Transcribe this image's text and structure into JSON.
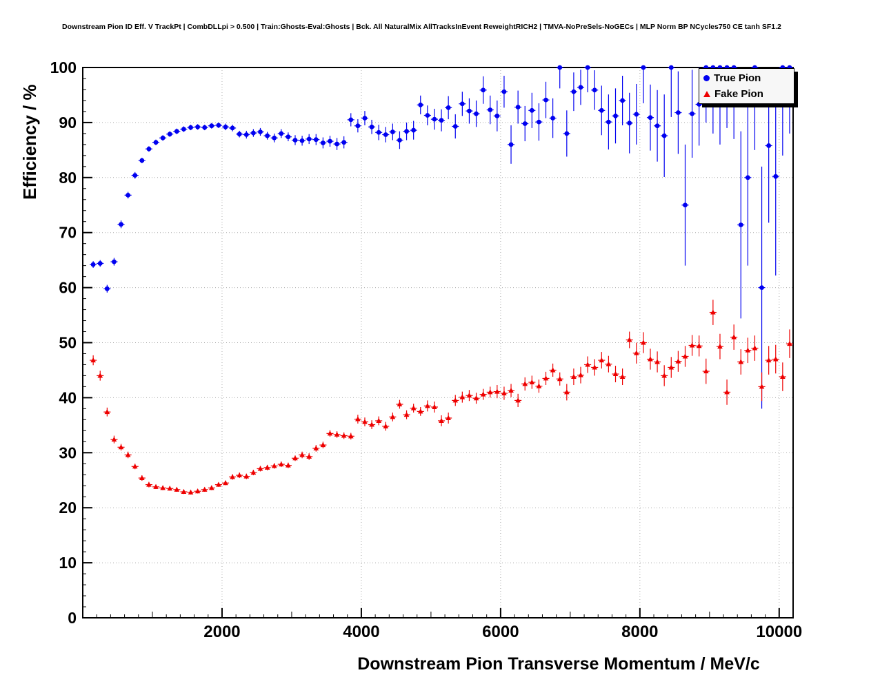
{
  "chart_data": {
    "type": "scatter",
    "title": "Downstream Pion ID Eff. V TrackPt | CombDLLpi > 0.500 | Train:Ghosts-Eval:Ghosts | Bck. All NaturalMix AllTracksInEvent ReweightRICH2 | TMVA-NoPreSels-NoGECs | MLP Norm BP NCycles750 CE tanh SF1.2",
    "xlabel": "Downstream Pion Transverse Momentum / MeV/c",
    "ylabel": "Efficiency / %",
    "xlim": [
      0,
      10200
    ],
    "ylim": [
      0,
      100
    ],
    "grid": true,
    "grid_color": "#aaaaaa",
    "legend_position": "top-right",
    "x_ticks": [
      2000,
      4000,
      6000,
      8000,
      10000
    ],
    "y_ticks": [
      0,
      10,
      20,
      30,
      40,
      50,
      60,
      70,
      80,
      90,
      100
    ],
    "x_minor_step": 200,
    "y_minor_step": 2,
    "x": [
      150,
      250,
      350,
      450,
      550,
      650,
      750,
      850,
      950,
      1050,
      1150,
      1250,
      1350,
      1450,
      1550,
      1650,
      1750,
      1850,
      1950,
      2050,
      2150,
      2250,
      2350,
      2450,
      2550,
      2650,
      2750,
      2850,
      2950,
      3050,
      3150,
      3250,
      3350,
      3450,
      3550,
      3650,
      3750,
      3850,
      3950,
      4050,
      4150,
      4250,
      4350,
      4450,
      4550,
      4650,
      4750,
      4850,
      4950,
      5050,
      5150,
      5250,
      5350,
      5450,
      5550,
      5650,
      5750,
      5850,
      5950,
      6050,
      6150,
      6250,
      6350,
      6450,
      6550,
      6650,
      6750,
      6850,
      6950,
      7050,
      7150,
      7250,
      7350,
      7450,
      7550,
      7650,
      7750,
      7850,
      7950,
      8050,
      8150,
      8250,
      8350,
      8450,
      8550,
      8650,
      8750,
      8850,
      8950,
      9050,
      9150,
      9250,
      9350,
      9450,
      9550,
      9650,
      9750,
      9850,
      9950,
      10050,
      10150
    ],
    "series": [
      {
        "name": "True Pion",
        "color": "#0000f0",
        "marker": "circle",
        "xerr": 50,
        "y": [
          64.2,
          64.4,
          59.8,
          64.7,
          71.5,
          76.8,
          80.4,
          83.1,
          85.2,
          86.4,
          87.2,
          87.9,
          88.4,
          88.8,
          89.1,
          89.2,
          89.1,
          89.4,
          89.5,
          89.2,
          89.0,
          87.9,
          87.8,
          88.1,
          88.3,
          87.6,
          87.2,
          88.0,
          87.4,
          86.8,
          86.7,
          87.0,
          86.9,
          86.3,
          86.6,
          86.1,
          86.4,
          90.5,
          89.4,
          90.8,
          89.2,
          88.2,
          87.8,
          88.3,
          86.8,
          88.4,
          88.6,
          93.2,
          91.3,
          90.6,
          90.4,
          92.7,
          89.3,
          93.4,
          92.1,
          91.6,
          95.9,
          92.3,
          91.2,
          95.6,
          86.0,
          92.8,
          89.8,
          92.2,
          90.1,
          94.1,
          90.8,
          100.0,
          88.0,
          95.6,
          96.4,
          100.0,
          95.9,
          92.2,
          90.1,
          91.2,
          94.0,
          89.9,
          91.5,
          100.0,
          90.9,
          89.4,
          87.6,
          100.0,
          91.8,
          75.0,
          91.6,
          93.3,
          100.0,
          100.0,
          100.0,
          100.0,
          100.0,
          71.4,
          80.0,
          100.0,
          60.0,
          85.8,
          80.2,
          100.0,
          100.0
        ],
        "yerr": [
          0.6,
          0.6,
          0.7,
          0.7,
          0.7,
          0.6,
          0.6,
          0.5,
          0.5,
          0.5,
          0.5,
          0.5,
          0.5,
          0.5,
          0.5,
          0.5,
          0.5,
          0.5,
          0.5,
          0.6,
          0.6,
          0.6,
          0.7,
          0.7,
          0.7,
          0.7,
          0.8,
          0.8,
          0.8,
          0.9,
          0.9,
          0.9,
          1.0,
          1.0,
          1.0,
          1.1,
          1.1,
          1.2,
          1.2,
          1.3,
          1.3,
          1.4,
          1.4,
          1.5,
          1.6,
          1.6,
          1.7,
          1.7,
          1.8,
          1.9,
          2.0,
          2.1,
          2.2,
          2.2,
          2.3,
          2.4,
          2.5,
          2.6,
          2.8,
          2.9,
          3.5,
          3.0,
          3.2,
          3.2,
          3.4,
          3.3,
          3.6,
          3.8,
          4.2,
          3.5,
          3.2,
          4.5,
          3.6,
          4.5,
          5.0,
          5.0,
          4.5,
          5.5,
          5.5,
          6.5,
          6.0,
          6.5,
          7.5,
          9.0,
          7.5,
          11.0,
          8.0,
          7.5,
          10.0,
          12.0,
          14.0,
          11.0,
          13.0,
          17.0,
          16.0,
          15.0,
          22.0,
          14.0,
          18.0,
          16.0,
          12.0
        ]
      },
      {
        "name": "Fake Pion",
        "color": "#ee0000",
        "marker": "triangle",
        "xerr": 50,
        "y": [
          46.8,
          44.0,
          37.4,
          32.4,
          31.0,
          29.6,
          27.5,
          25.4,
          24.2,
          23.8,
          23.6,
          23.5,
          23.3,
          22.9,
          22.8,
          23.0,
          23.3,
          23.6,
          24.2,
          24.5,
          25.6,
          25.9,
          25.7,
          26.4,
          27.1,
          27.3,
          27.6,
          27.9,
          27.7,
          29.0,
          29.6,
          29.3,
          30.8,
          31.4,
          33.5,
          33.3,
          33.1,
          33.0,
          36.1,
          35.6,
          35.1,
          35.8,
          34.8,
          36.5,
          38.8,
          36.9,
          38.1,
          37.5,
          38.5,
          38.3,
          35.8,
          36.3,
          39.5,
          40.1,
          40.4,
          39.9,
          40.6,
          41.0,
          41.1,
          40.8,
          41.3,
          39.5,
          42.5,
          42.8,
          42.1,
          43.5,
          45.0,
          43.4,
          41.0,
          43.8,
          44.1,
          46.0,
          45.5,
          46.8,
          46.1,
          44.3,
          43.8,
          50.5,
          48.1,
          50.0,
          47.0,
          46.5,
          44.0,
          45.5,
          46.6,
          47.5,
          49.5,
          49.4,
          44.8,
          55.5,
          49.3,
          41.0,
          51.0,
          46.5,
          48.6,
          49.0,
          42.0,
          46.8,
          47.0,
          43.8,
          49.8
        ],
        "yerr": [
          0.9,
          0.9,
          0.8,
          0.7,
          0.6,
          0.6,
          0.5,
          0.5,
          0.5,
          0.4,
          0.4,
          0.4,
          0.4,
          0.4,
          0.4,
          0.4,
          0.4,
          0.4,
          0.4,
          0.4,
          0.5,
          0.5,
          0.5,
          0.5,
          0.5,
          0.5,
          0.5,
          0.5,
          0.5,
          0.5,
          0.6,
          0.6,
          0.6,
          0.6,
          0.6,
          0.6,
          0.6,
          0.6,
          0.8,
          0.8,
          0.8,
          0.8,
          0.8,
          0.8,
          0.8,
          0.8,
          0.8,
          0.8,
          1.0,
          1.0,
          1.0,
          1.0,
          1.0,
          1.0,
          1.0,
          1.0,
          1.0,
          1.0,
          1.2,
          1.2,
          1.2,
          1.2,
          1.2,
          1.2,
          1.2,
          1.2,
          1.2,
          1.2,
          1.5,
          1.5,
          1.5,
          1.5,
          1.5,
          1.5,
          1.5,
          1.5,
          1.5,
          1.5,
          1.9,
          1.9,
          1.9,
          1.9,
          1.9,
          1.9,
          1.9,
          1.9,
          1.9,
          1.9,
          2.3,
          2.3,
          2.3,
          2.3,
          2.3,
          2.3,
          2.3,
          2.3,
          2.6,
          2.6,
          2.6,
          2.6,
          2.6
        ]
      }
    ]
  },
  "legend": {
    "items": [
      {
        "label": "True Pion",
        "marker": "circle",
        "color": "#0000f0"
      },
      {
        "label": "Fake Pion",
        "marker": "triangle",
        "color": "#ee0000"
      }
    ]
  }
}
